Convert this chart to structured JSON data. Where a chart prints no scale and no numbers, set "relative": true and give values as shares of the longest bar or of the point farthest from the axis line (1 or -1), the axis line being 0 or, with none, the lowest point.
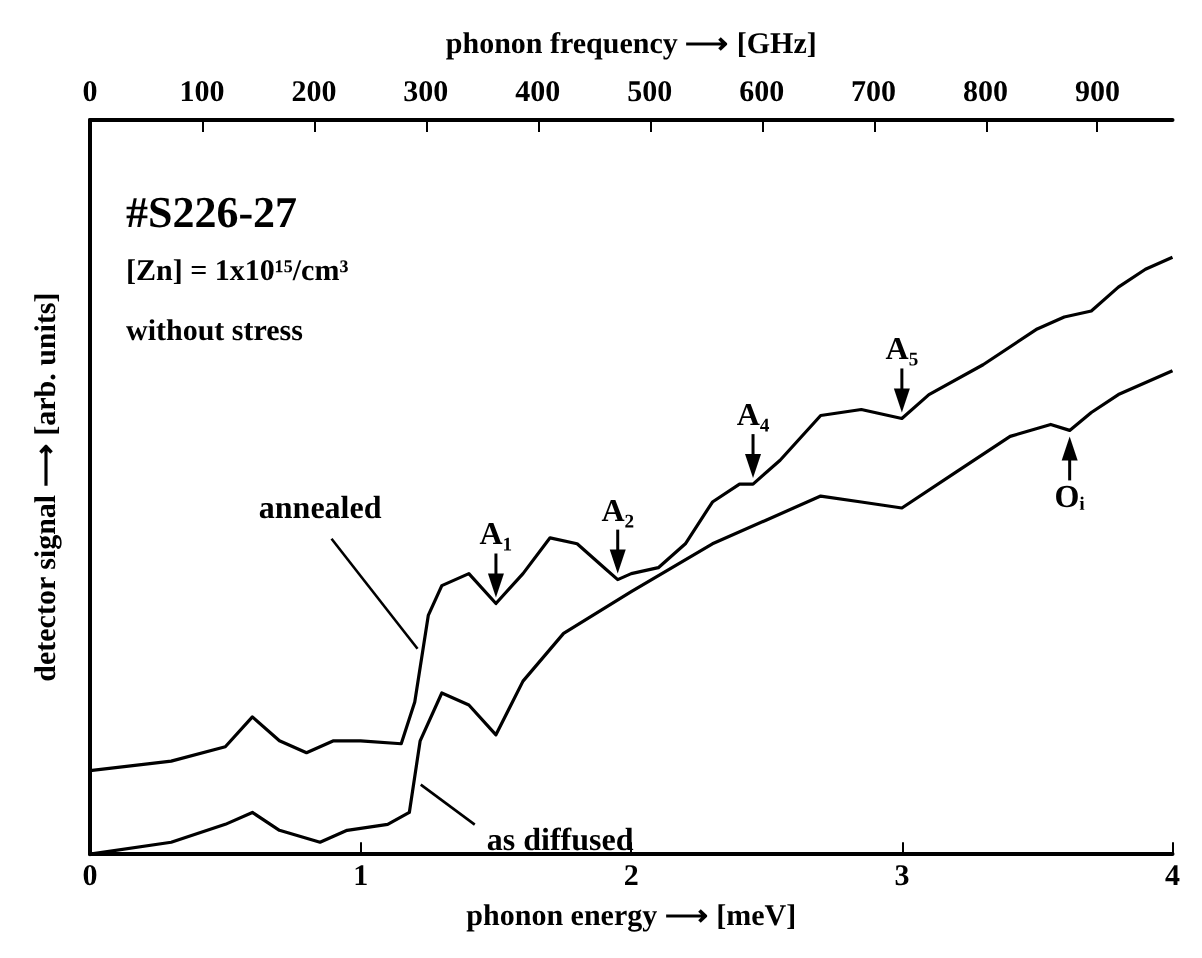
{
  "chart_data": {
    "type": "line",
    "relative": true,
    "xlabel": "phonon energy ⟶ [meV]",
    "ylabel": "detector signal ⟶ [arb. units]",
    "x2label": "phonon frequency ⟶ [GHz]",
    "xlim": [
      0,
      4
    ],
    "xticks": [
      0,
      1,
      2,
      3,
      4
    ],
    "x2lim": [
      0,
      967
    ],
    "x2ticks": [
      0,
      100,
      200,
      300,
      400,
      500,
      600,
      700,
      800,
      900
    ],
    "legend": false,
    "grid": false,
    "marker": "none",
    "line_style": "solid",
    "annotations": [
      "#S226-27",
      "[Zn] = 1x10¹⁵/cm³",
      "without stress",
      {
        "text": "A₁",
        "x": 1.5,
        "y": 0.42
      },
      {
        "text": "A₂",
        "x": 1.95,
        "y": 0.46
      },
      {
        "text": "A₄",
        "x": 2.45,
        "y": 0.62
      },
      {
        "text": "A₅",
        "x": 3.0,
        "y": 0.73
      },
      {
        "text": "Oᵢ",
        "x": 3.62,
        "y": 0.71
      }
    ],
    "series": [
      {
        "name": "annealed",
        "color": "#000000",
        "x": [
          0,
          0.3,
          0.5,
          0.6,
          0.7,
          0.8,
          0.9,
          1.0,
          1.15,
          1.2,
          1.25,
          1.3,
          1.4,
          1.5,
          1.6,
          1.7,
          1.8,
          1.9,
          1.95,
          2.0,
          2.1,
          2.2,
          2.3,
          2.4,
          2.45,
          2.55,
          2.7,
          2.85,
          3.0,
          3.1,
          3.3,
          3.5,
          3.6,
          3.7,
          3.8,
          3.9,
          4.0
        ],
        "values": [
          0.14,
          0.156,
          0.18,
          0.23,
          0.19,
          0.17,
          0.19,
          0.19,
          0.185,
          0.255,
          0.4,
          0.45,
          0.47,
          0.42,
          0.47,
          0.53,
          0.52,
          0.48,
          0.46,
          0.47,
          0.48,
          0.52,
          0.59,
          0.62,
          0.62,
          0.66,
          0.735,
          0.745,
          0.73,
          0.77,
          0.82,
          0.88,
          0.9,
          0.91,
          0.95,
          0.98,
          1
        ]
      },
      {
        "name": "as diffused",
        "color": "#000000",
        "x": [
          0,
          0.3,
          0.5,
          0.6,
          0.7,
          0.85,
          0.95,
          1.1,
          1.18,
          1.22,
          1.3,
          1.4,
          1.5,
          1.6,
          1.75,
          2.0,
          2.3,
          2.5,
          2.7,
          2.85,
          3.0,
          3.2,
          3.4,
          3.55,
          3.62,
          3.7,
          3.8,
          4.0
        ],
        "values": [
          0,
          0.02,
          0.05,
          0.07,
          0.04,
          0.02,
          0.04,
          0.05,
          0.07,
          0.19,
          0.27,
          0.25,
          0.2,
          0.29,
          0.37,
          0.44,
          0.52,
          0.56,
          0.6,
          0.59,
          0.58,
          0.64,
          0.7,
          0.72,
          0.71,
          0.74,
          0.77,
          0.81
        ]
      }
    ]
  }
}
